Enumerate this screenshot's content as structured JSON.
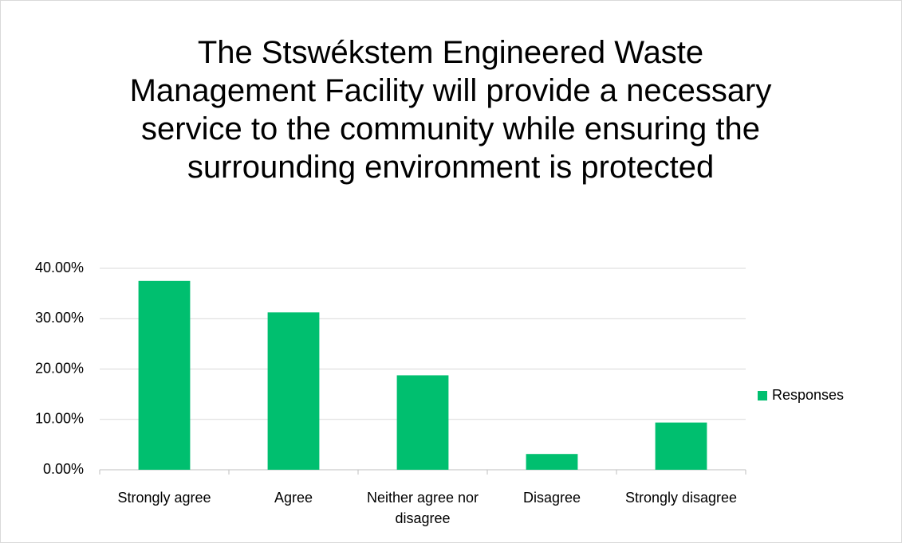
{
  "chart_data": {
    "type": "bar",
    "title": "The Stswékstem Engineered Waste Management Facility will provide a necessary service to the community while ensuring the surrounding environment is protected",
    "categories": [
      "Strongly agree",
      "Agree",
      "Neither agree nor disagree",
      "Disagree",
      "Strongly disagree"
    ],
    "series": [
      {
        "name": "Responses",
        "color": "#00bf6f",
        "values": [
          37.5,
          31.25,
          18.75,
          3.13,
          9.38
        ]
      }
    ],
    "ylim": [
      0,
      40
    ],
    "yticks": [
      {
        "value": 0,
        "label": "0.00%"
      },
      {
        "value": 10,
        "label": "10.00%"
      },
      {
        "value": 20,
        "label": "20.00%"
      },
      {
        "value": 30,
        "label": "30.00%"
      },
      {
        "value": 40,
        "label": "40.00%"
      }
    ],
    "grid": true,
    "legend": "right"
  }
}
